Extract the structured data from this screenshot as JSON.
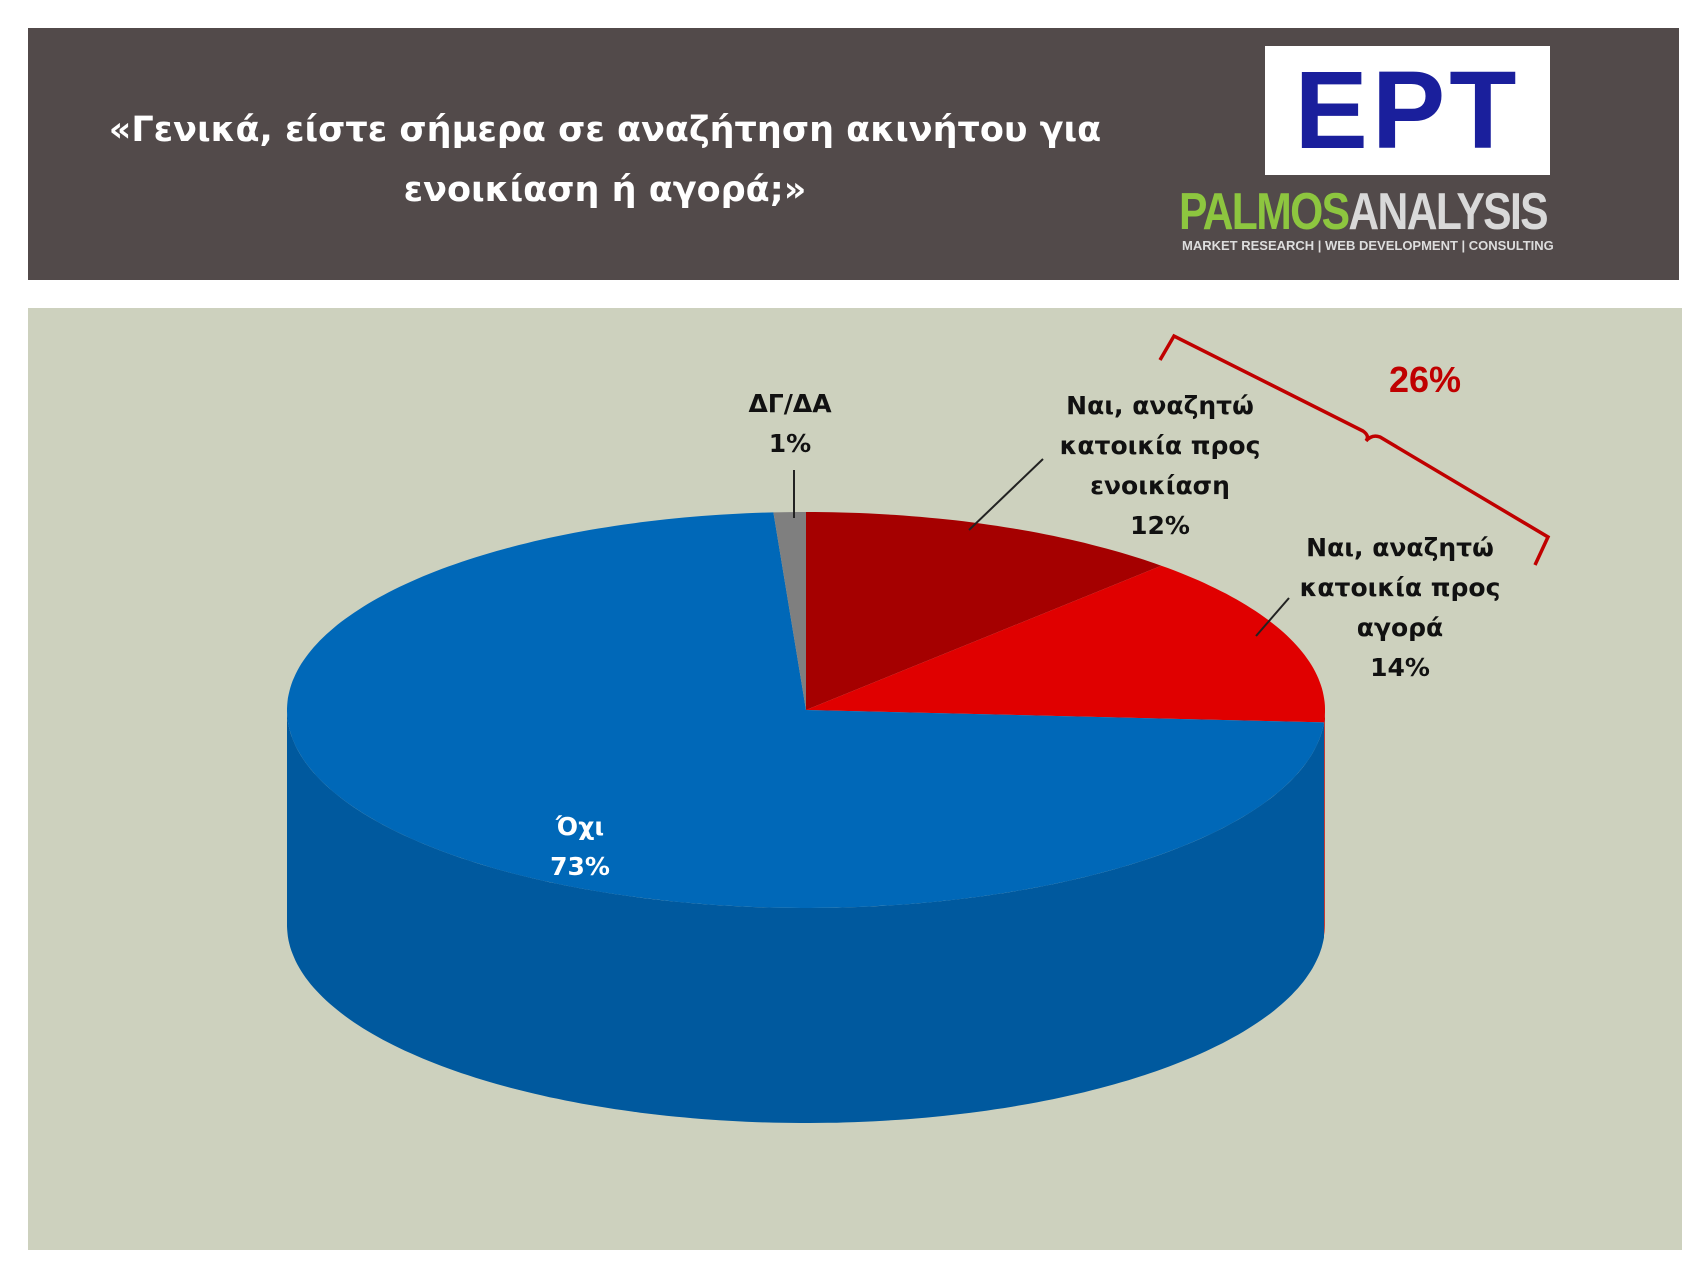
{
  "header": {
    "logo_main": "ΕΡΤ",
    "brand_a": "PALMOS",
    "brand_b": "ANALYSIS",
    "tagline": "MARKET RESEARCH | WEB DEVELOPMENT | CONSULTING"
  },
  "chart_data": {
    "type": "pie",
    "title": "«Γενικά, είστε σήμερα σε αναζήτηση ακινήτου για ενοικίαση ή αγορά;»",
    "categories": [
      "Ναι, αναζητώ κατοικία προς ενοικίαση",
      "Ναι, αναζητώ κατοικία προς αγορά",
      "Όχι",
      "ΔΓ/ΔΑ"
    ],
    "values": [
      12,
      14,
      73,
      1
    ],
    "value_labels": [
      "12%",
      "14%",
      "73%",
      "1%"
    ],
    "colors": [
      "#a50000",
      "#e00000",
      "#0068b8",
      "#7f7f7f"
    ],
    "annotations": [
      {
        "text": "26%"
      }
    ]
  }
}
